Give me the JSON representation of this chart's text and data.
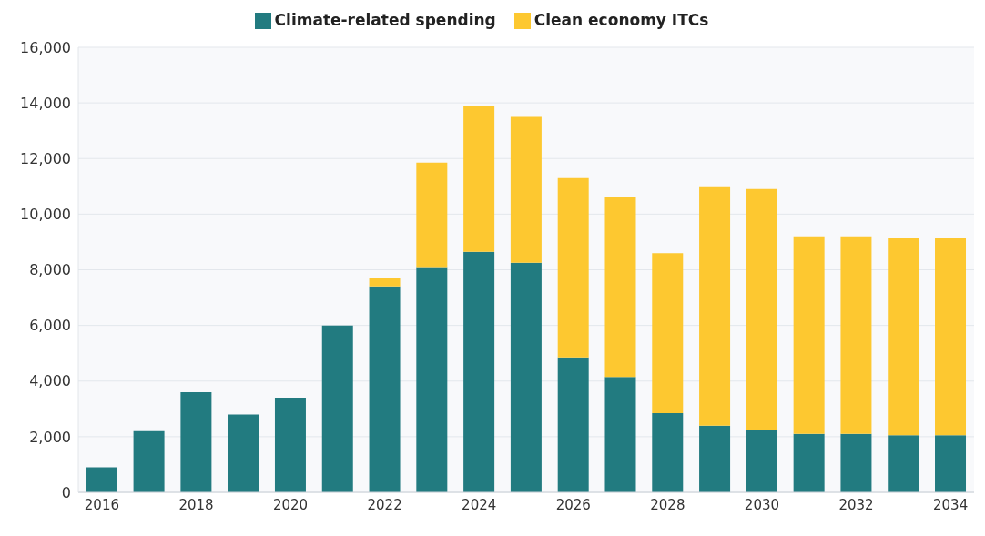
{
  "chart_data": {
    "type": "bar",
    "stacked": true,
    "categories": [
      "2016",
      null,
      "2018",
      null,
      "2020",
      null,
      "2022",
      null,
      "2024",
      null,
      "2026",
      null,
      "2028",
      null,
      "2030",
      null,
      "2032",
      null,
      "2034"
    ],
    "series": [
      {
        "name": "Climate-related spending",
        "color": "#227b80",
        "values": [
          900,
          2200,
          3600,
          2800,
          3400,
          6000,
          7400,
          8100,
          8650,
          8250,
          4850,
          4150,
          2850,
          2400,
          2250,
          2100,
          2100,
          2050,
          2050
        ]
      },
      {
        "name": "Clean economy ITCs",
        "color": "#fdc830",
        "values": [
          null,
          null,
          null,
          null,
          null,
          null,
          300,
          3750,
          5250,
          5250,
          6450,
          6450,
          5750,
          8600,
          8650,
          7100,
          7100,
          7100,
          7100
        ]
      }
    ],
    "ylim": [
      0,
      16000
    ],
    "yticks": [
      {
        "value": 0,
        "label": "0"
      },
      {
        "value": 2000,
        "label": "2,000"
      },
      {
        "value": 4000,
        "label": "4,000"
      },
      {
        "value": 6000,
        "label": "6,000"
      },
      {
        "value": 8000,
        "label": "8,000"
      },
      {
        "value": 10000,
        "label": "10,000"
      },
      {
        "value": 12000,
        "label": "12,000"
      },
      {
        "value": 14000,
        "label": "14,000"
      },
      {
        "value": 16000,
        "label": "16,000"
      }
    ],
    "grid": "y",
    "legend": "top"
  }
}
